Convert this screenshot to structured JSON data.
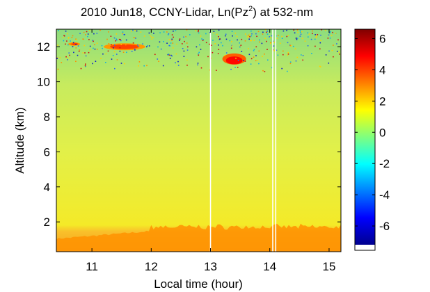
{
  "chart_data": {
    "type": "heatmap",
    "title": "2010 Jun18, CCNY-Lidar, Ln(Pz",
    "title_superscript": "2",
    "title_suffix": ") at 532-nm",
    "xlabel": "Local time (hour)",
    "ylabel": "Altitude (km)",
    "xlim": [
      10.4,
      15.2
    ],
    "ylim": [
      0.3,
      13.0
    ],
    "x_ticks": [
      11,
      12,
      13,
      14,
      15
    ],
    "x_tick_labels": [
      "11",
      "12",
      "13",
      "14",
      "15"
    ],
    "y_ticks": [
      2,
      4,
      6,
      8,
      10,
      12
    ],
    "y_tick_labels": [
      "2",
      "4",
      "6",
      "8",
      "10",
      "12"
    ],
    "colorbar": {
      "range": [
        -7.2,
        6.6
      ],
      "ticks": [
        6,
        4,
        2,
        0,
        -2,
        -4,
        -6
      ],
      "tick_labels": [
        "6",
        "4",
        "2",
        "0",
        "-2",
        "-4",
        "-6"
      ],
      "colormap": "jet"
    },
    "data_gaps_hours": [
      13.0,
      14.05,
      14.1
    ],
    "features": [
      {
        "name": "cirrus cloud",
        "time_start": 11.2,
        "time_end": 11.9,
        "altitude_km": 12.0,
        "value": 4.0
      },
      {
        "name": "cirrus cloud",
        "time_start": 13.2,
        "time_end": 13.6,
        "altitude_km": 11.3,
        "value": 4.8
      },
      {
        "name": "thin cloud",
        "time_start": 10.6,
        "time_end": 10.8,
        "altitude_km": 12.15,
        "value": 4.0
      },
      {
        "name": "boundary layer aerosol",
        "time_start": 10.4,
        "time_end": 15.2,
        "altitude_top_km": 1.8,
        "value": 2.9
      }
    ],
    "background_profile": [
      {
        "altitude_km": 0.3,
        "value": 2.9
      },
      {
        "altitude_km": 1.5,
        "value": 2.6
      },
      {
        "altitude_km": 2.0,
        "value": 1.8
      },
      {
        "altitude_km": 6.0,
        "value": 1.5
      },
      {
        "altitude_km": 9.0,
        "value": 1.2
      },
      {
        "altitude_km": 11.0,
        "value": 0.8
      },
      {
        "altitude_km": 13.0,
        "value": 0.4
      }
    ]
  }
}
